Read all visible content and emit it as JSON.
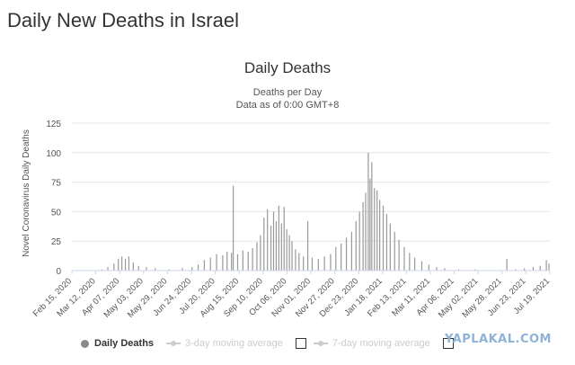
{
  "page_title": "Daily New Deaths in Israel",
  "chart_data": {
    "type": "bar",
    "title": "Daily Deaths",
    "subtitle_lines": [
      "Deaths per Day",
      "Data as of 0:00 GMT+8"
    ],
    "ylabel": "Novel Coronavirus Daily Deaths",
    "xlabel": "",
    "ylim": [
      0,
      125
    ],
    "yticks": [
      0,
      25,
      50,
      75,
      100,
      125
    ],
    "grid": true,
    "x_start": "2020-02-15",
    "x_end": "2021-08-13",
    "xticks": [
      "Feb 15, 2020",
      "Mar 12, 2020",
      "Apr 07, 2020",
      "May 03, 2020",
      "May 29, 2020",
      "Jun 24, 2020",
      "Jul 20, 2020",
      "Aug 15, 2020",
      "Sep 10, 2020",
      "Oct 06, 2020",
      "Nov 01, 2020",
      "Nov 27, 2020",
      "Dec 23, 2020",
      "Jan 18, 2021",
      "Feb 13, 2021",
      "Mar 11, 2021",
      "Apr 06, 2021",
      "May 02, 2021",
      "May 28, 2021",
      "Jun 23, 2021",
      "Jul 19, 2021"
    ],
    "series": [
      {
        "name": "Daily Deaths",
        "color": "#999999",
        "points": [
          [
            "2020-03-20",
            1
          ],
          [
            "2020-03-27",
            3
          ],
          [
            "2020-04-03",
            6
          ],
          [
            "2020-04-08",
            10
          ],
          [
            "2020-04-12",
            12
          ],
          [
            "2020-04-16",
            10
          ],
          [
            "2020-04-20",
            12
          ],
          [
            "2020-04-25",
            7
          ],
          [
            "2020-05-01",
            4
          ],
          [
            "2020-05-10",
            3
          ],
          [
            "2020-05-20",
            2
          ],
          [
            "2020-06-05",
            1
          ],
          [
            "2020-06-20",
            2
          ],
          [
            "2020-07-01",
            3
          ],
          [
            "2020-07-08",
            5
          ],
          [
            "2020-07-15",
            9
          ],
          [
            "2020-07-22",
            11
          ],
          [
            "2020-07-29",
            14
          ],
          [
            "2020-08-05",
            13
          ],
          [
            "2020-08-10",
            16
          ],
          [
            "2020-08-15",
            15
          ],
          [
            "2020-08-17",
            72
          ],
          [
            "2020-08-22",
            14
          ],
          [
            "2020-08-28",
            17
          ],
          [
            "2020-09-03",
            16
          ],
          [
            "2020-09-08",
            19
          ],
          [
            "2020-09-13",
            24
          ],
          [
            "2020-09-17",
            30
          ],
          [
            "2020-09-21",
            45
          ],
          [
            "2020-09-25",
            52
          ],
          [
            "2020-09-29",
            38
          ],
          [
            "2020-10-02",
            50
          ],
          [
            "2020-10-05",
            42
          ],
          [
            "2020-10-08",
            55
          ],
          [
            "2020-10-11",
            40
          ],
          [
            "2020-10-14",
            54
          ],
          [
            "2020-10-17",
            35
          ],
          [
            "2020-10-20",
            30
          ],
          [
            "2020-10-23",
            25
          ],
          [
            "2020-10-27",
            18
          ],
          [
            "2020-10-31",
            15
          ],
          [
            "2020-11-05",
            12
          ],
          [
            "2020-11-10",
            42
          ],
          [
            "2020-11-15",
            11
          ],
          [
            "2020-11-22",
            10
          ],
          [
            "2020-11-29",
            12
          ],
          [
            "2020-12-06",
            14
          ],
          [
            "2020-12-12",
            20
          ],
          [
            "2020-12-18",
            23
          ],
          [
            "2020-12-24",
            28
          ],
          [
            "2020-12-30",
            33
          ],
          [
            "2021-01-04",
            42
          ],
          [
            "2021-01-08",
            50
          ],
          [
            "2021-01-12",
            58
          ],
          [
            "2021-01-15",
            66
          ],
          [
            "2021-01-18",
            100
          ],
          [
            "2021-01-20",
            78
          ],
          [
            "2021-01-22",
            92
          ],
          [
            "2021-01-25",
            70
          ],
          [
            "2021-01-28",
            68
          ],
          [
            "2021-01-31",
            60
          ],
          [
            "2021-02-04",
            55
          ],
          [
            "2021-02-08",
            48
          ],
          [
            "2021-02-12",
            40
          ],
          [
            "2021-02-17",
            33
          ],
          [
            "2021-02-22",
            26
          ],
          [
            "2021-02-28",
            20
          ],
          [
            "2021-03-06",
            15
          ],
          [
            "2021-03-12",
            11
          ],
          [
            "2021-03-20",
            8
          ],
          [
            "2021-03-28",
            5
          ],
          [
            "2021-04-06",
            3
          ],
          [
            "2021-04-15",
            2
          ],
          [
            "2021-05-01",
            1
          ],
          [
            "2021-05-20",
            1
          ],
          [
            "2021-06-15",
            0
          ],
          [
            "2021-06-25",
            10
          ],
          [
            "2021-07-05",
            1
          ],
          [
            "2021-07-15",
            2
          ],
          [
            "2021-07-25",
            3
          ],
          [
            "2021-08-02",
            4
          ],
          [
            "2021-08-09",
            9
          ],
          [
            "2021-08-12",
            6
          ]
        ]
      }
    ],
    "legend": [
      {
        "label": "Daily Deaths",
        "active": true
      },
      {
        "label": "3-day moving average",
        "active": false
      },
      {
        "label": "7-day moving average",
        "active": false
      }
    ]
  },
  "watermark": "YAPLAKAL.COM",
  "legend_position": "bottom"
}
